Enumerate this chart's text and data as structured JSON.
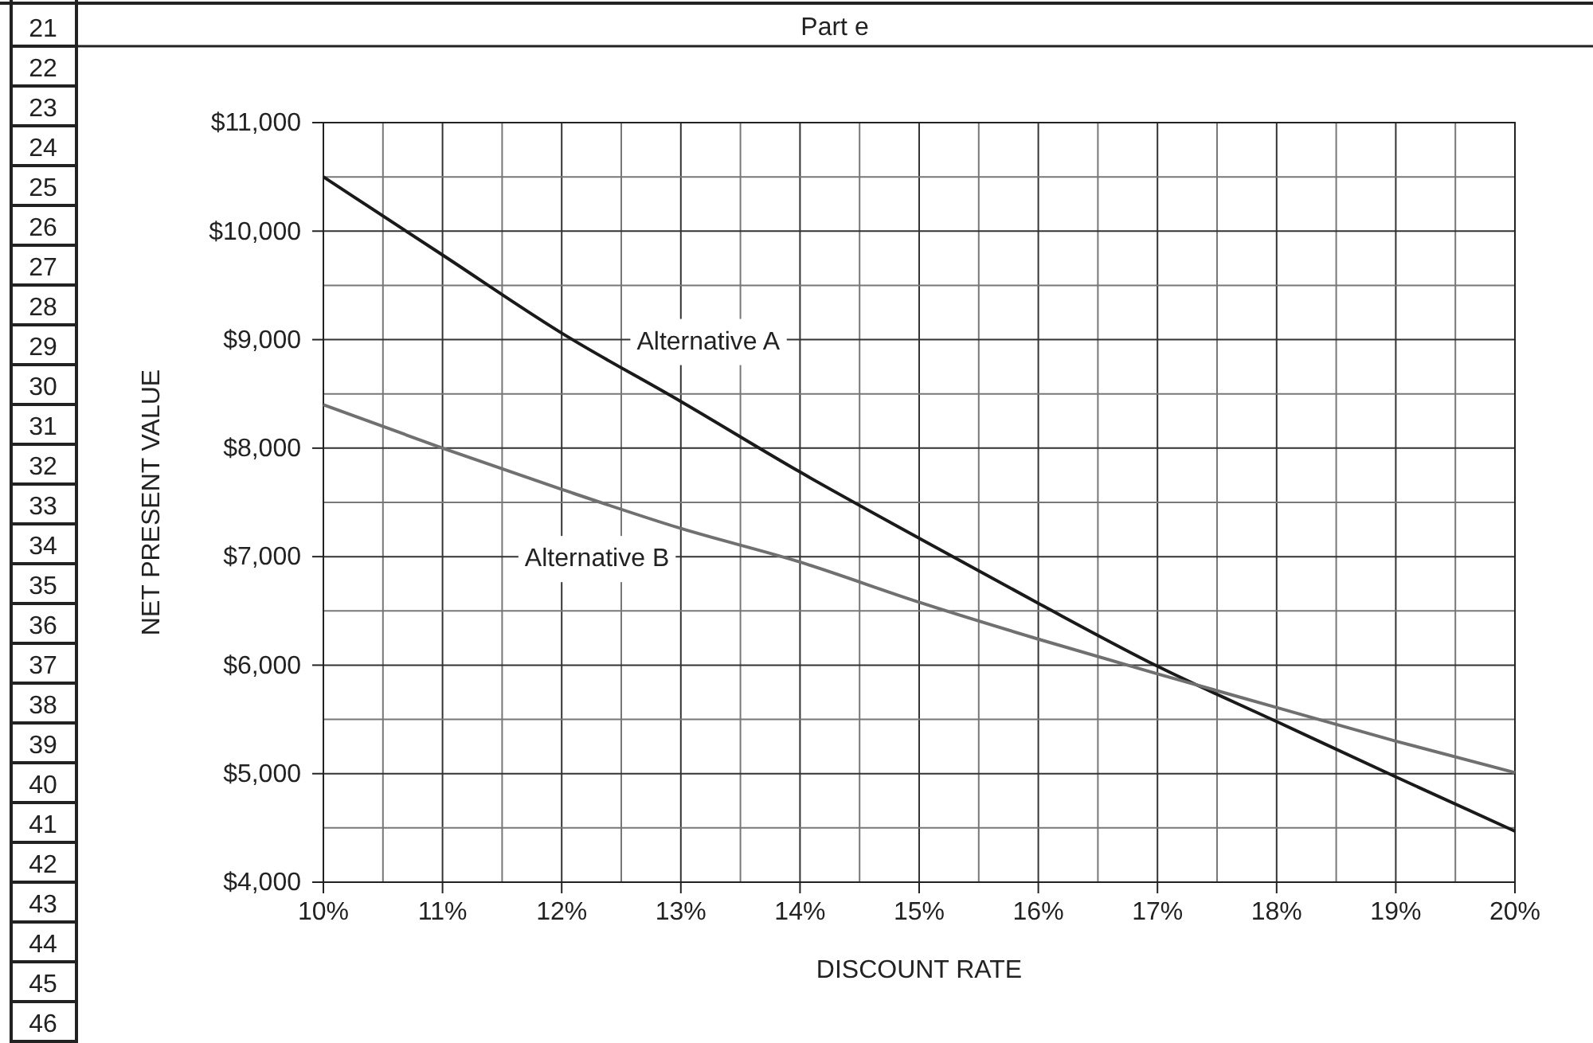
{
  "chart_data": {
    "type": "line",
    "title": "Part e",
    "xlabel": "DISCOUNT RATE",
    "ylabel": "NET PRESENT VALUE",
    "x": [
      10,
      11,
      12,
      13,
      14,
      15,
      16,
      17,
      18,
      19,
      20
    ],
    "series": [
      {
        "name": "Alternative A",
        "color": "#1a1a1a",
        "values": [
          10500,
          9780,
          9060,
          8430,
          7780,
          7170,
          6570,
          5990,
          5480,
          4970,
          4470
        ]
      },
      {
        "name": "Alternative B",
        "color": "#707070",
        "values": [
          8400,
          8000,
          7620,
          7260,
          6950,
          6580,
          6240,
          5920,
          5610,
          5300,
          5010
        ]
      }
    ],
    "xlim": [
      10,
      20
    ],
    "xticks": [
      {
        "value": 10,
        "label": "10%"
      },
      {
        "value": 10.5,
        "label": null
      },
      {
        "value": 11,
        "label": "11%"
      },
      {
        "value": 11.5,
        "label": null
      },
      {
        "value": 12,
        "label": "12%"
      },
      {
        "value": 12.5,
        "label": null
      },
      {
        "value": 13,
        "label": "13%"
      },
      {
        "value": 13.5,
        "label": null
      },
      {
        "value": 14,
        "label": "14%"
      },
      {
        "value": 14.5,
        "label": null
      },
      {
        "value": 15,
        "label": "15%"
      },
      {
        "value": 15.5,
        "label": null
      },
      {
        "value": 16,
        "label": "16%"
      },
      {
        "value": 16.5,
        "label": null
      },
      {
        "value": 17,
        "label": "17%"
      },
      {
        "value": 17.5,
        "label": null
      },
      {
        "value": 18,
        "label": "18%"
      },
      {
        "value": 18.5,
        "label": null
      },
      {
        "value": 19,
        "label": "19%"
      },
      {
        "value": 19.5,
        "label": null
      },
      {
        "value": 20,
        "label": "20%"
      }
    ],
    "ylim": [
      4000,
      11000
    ],
    "yticks": [
      {
        "value": 4000,
        "label": "$4,000"
      },
      {
        "value": 4500,
        "label": null
      },
      {
        "value": 5000,
        "label": "$5,000"
      },
      {
        "value": 5500,
        "label": null
      },
      {
        "value": 6000,
        "label": "$6,000"
      },
      {
        "value": 6500,
        "label": null
      },
      {
        "value": 7000,
        "label": "$7,000"
      },
      {
        "value": 7500,
        "label": null
      },
      {
        "value": 8000,
        "label": "$8,000"
      },
      {
        "value": 8500,
        "label": null
      },
      {
        "value": 9000,
        "label": "$9,000"
      },
      {
        "value": 9500,
        "label": null
      },
      {
        "value": 10000,
        "label": "$10,000"
      },
      {
        "value": 10500,
        "label": null
      },
      {
        "value": 11000,
        "label": "$11,000"
      }
    ],
    "grid": true,
    "marker": "none",
    "line_style": "solid",
    "annotations": [
      "21",
      "22",
      "23",
      "24",
      "25",
      "26",
      "27",
      "28",
      "29",
      "30",
      "31",
      "32",
      "33",
      "34",
      "35",
      "36",
      "37",
      "38",
      "39",
      "40",
      "41",
      "42",
      "43",
      "44",
      "45",
      "46"
    ]
  }
}
